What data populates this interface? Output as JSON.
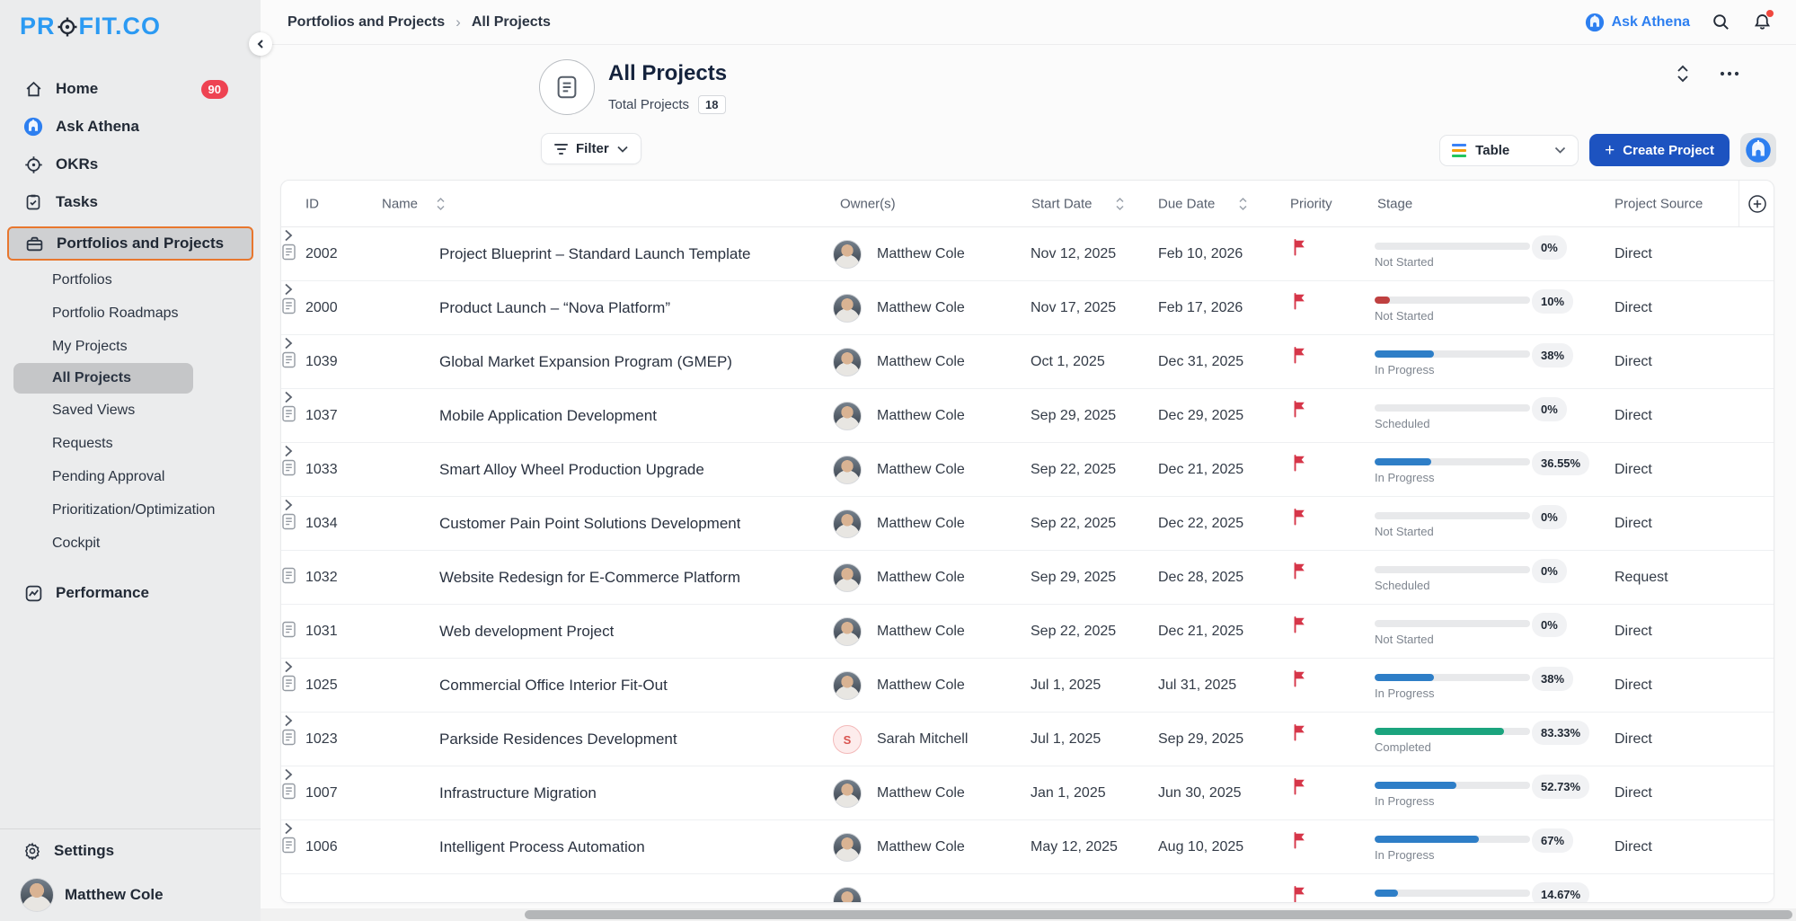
{
  "brand": {
    "logo_left": "PR",
    "logo_right": "FIT.CO"
  },
  "topbar": {
    "breadcrumb": {
      "parent": "Portfolios and Projects",
      "separator": "›",
      "current": "All Projects"
    },
    "ask_athena": "Ask Athena"
  },
  "sidebar": {
    "items": [
      {
        "label": "Home",
        "badge": "90"
      },
      {
        "label": "Ask Athena"
      },
      {
        "label": "OKRs"
      },
      {
        "label": "Tasks"
      },
      {
        "label": "Portfolios and Projects"
      },
      {
        "label": "Performance"
      }
    ],
    "sub": [
      "Portfolios",
      "Portfolio Roadmaps",
      "My Projects",
      "All Projects",
      "Saved Views",
      "Requests",
      "Pending Approval",
      "Prioritization/Optimization",
      "Cockpit"
    ],
    "footer": {
      "settings": "Settings",
      "user": "Matthew Cole"
    }
  },
  "header": {
    "title": "All Projects",
    "total_label": "Total Projects",
    "total_count": "18"
  },
  "toolbar": {
    "filter": "Filter",
    "view": "Table",
    "create": "Create Project"
  },
  "table": {
    "columns": {
      "id": "ID",
      "name": "Name",
      "owner": "Owner(s)",
      "start": "Start Date",
      "due": "Due Date",
      "priority": "Priority",
      "stage": "Stage",
      "source": "Project Source"
    },
    "rows": [
      {
        "id": "2002",
        "name": "Project Blueprint – Standard Launch Template",
        "expandable": true,
        "owner": "Matthew Cole",
        "avatar": "photo",
        "start": "Nov 12, 2025",
        "due": "Feb 10, 2026",
        "progress": "0%",
        "bar": 0,
        "bar_color": "blue",
        "stage": "Not Started",
        "source": "Direct"
      },
      {
        "id": "2000",
        "name": "Product Launch – “Nova Platform”",
        "expandable": true,
        "owner": "Matthew Cole",
        "avatar": "photo",
        "start": "Nov 17, 2025",
        "due": "Feb 17, 2026",
        "progress": "10%",
        "bar": 10,
        "bar_color": "red",
        "stage": "Not Started",
        "source": "Direct"
      },
      {
        "id": "1039",
        "name": "Global Market Expansion Program (GMEP)",
        "expandable": true,
        "owner": "Matthew Cole",
        "avatar": "photo",
        "start": "Oct 1, 2025",
        "due": "Dec 31, 2025",
        "progress": "38%",
        "bar": 38,
        "bar_color": "blue",
        "stage": "In Progress",
        "source": "Direct"
      },
      {
        "id": "1037",
        "name": "Mobile Application Development",
        "expandable": true,
        "owner": "Matthew Cole",
        "avatar": "photo",
        "start": "Sep 29, 2025",
        "due": "Dec 29, 2025",
        "progress": "0%",
        "bar": 0,
        "bar_color": "blue",
        "stage": "Scheduled",
        "source": "Direct"
      },
      {
        "id": "1033",
        "name": "Smart Alloy Wheel Production Upgrade",
        "expandable": true,
        "owner": "Matthew Cole",
        "avatar": "photo",
        "start": "Sep 22, 2025",
        "due": "Dec 21, 2025",
        "progress": "36.55%",
        "bar": 36.55,
        "bar_color": "blue",
        "stage": "In Progress",
        "source": "Direct"
      },
      {
        "id": "1034",
        "name": "Customer Pain Point Solutions Development",
        "expandable": true,
        "owner": "Matthew Cole",
        "avatar": "photo",
        "start": "Sep 22, 2025",
        "due": "Dec 22, 2025",
        "progress": "0%",
        "bar": 0,
        "bar_color": "blue",
        "stage": "Not Started",
        "source": "Direct"
      },
      {
        "id": "1032",
        "name": "Website Redesign for E-Commerce Platform",
        "expandable": false,
        "owner": "Matthew Cole",
        "avatar": "photo",
        "start": "Sep 29, 2025",
        "due": "Dec 28, 2025",
        "progress": "0%",
        "bar": 0,
        "bar_color": "blue",
        "stage": "Scheduled",
        "source": "Request"
      },
      {
        "id": "1031",
        "name": "Web development Project",
        "expandable": false,
        "owner": "Matthew Cole",
        "avatar": "photo",
        "start": "Sep 22, 2025",
        "due": "Dec 21, 2025",
        "progress": "0%",
        "bar": 0,
        "bar_color": "blue",
        "stage": "Not Started",
        "source": "Direct"
      },
      {
        "id": "1025",
        "name": "Commercial Office Interior Fit-Out",
        "expandable": true,
        "owner": "Matthew Cole",
        "avatar": "photo",
        "start": "Jul 1, 2025",
        "due": "Jul 31, 2025",
        "progress": "38%",
        "bar": 38,
        "bar_color": "blue",
        "stage": "In Progress",
        "source": "Direct"
      },
      {
        "id": "1023",
        "name": "Parkside Residences Development",
        "expandable": true,
        "owner": "Sarah Mitchell",
        "avatar": "initial",
        "initial": "S",
        "start": "Jul 1, 2025",
        "due": "Sep 29, 2025",
        "progress": "83.33%",
        "bar": 83.33,
        "bar_color": "green",
        "stage": "Completed",
        "source": "Direct"
      },
      {
        "id": "1007",
        "name": "Infrastructure Migration",
        "expandable": true,
        "owner": "Matthew Cole",
        "avatar": "photo",
        "start": "Jan 1, 2025",
        "due": "Jun 30, 2025",
        "progress": "52.73%",
        "bar": 52.73,
        "bar_color": "blue",
        "stage": "In Progress",
        "source": "Direct"
      },
      {
        "id": "1006",
        "name": "Intelligent Process Automation",
        "expandable": true,
        "owner": "Matthew Cole",
        "avatar": "photo",
        "start": "May 12, 2025",
        "due": "Aug 10, 2025",
        "progress": "67%",
        "bar": 67,
        "bar_color": "blue",
        "stage": "In Progress",
        "source": "Direct"
      },
      {
        "id": "",
        "name": "",
        "partial": true,
        "expandable": false,
        "owner": "",
        "avatar": "photo",
        "start": "",
        "due": "",
        "progress": "14.67%",
        "bar": 15,
        "bar_color": "blue",
        "stage": "",
        "source": ""
      }
    ]
  },
  "colors": {
    "accent_blue": "#2d7ff0",
    "create_button": "#1d53c0",
    "progress_blue": "#2e7ec7",
    "progress_green": "#1ba47e",
    "progress_red": "#bf4040",
    "flag_red": "#d63649",
    "highlight_orange": "#e8772e",
    "badge_red": "#ee4352",
    "logo_blue": "#2b9af3"
  }
}
